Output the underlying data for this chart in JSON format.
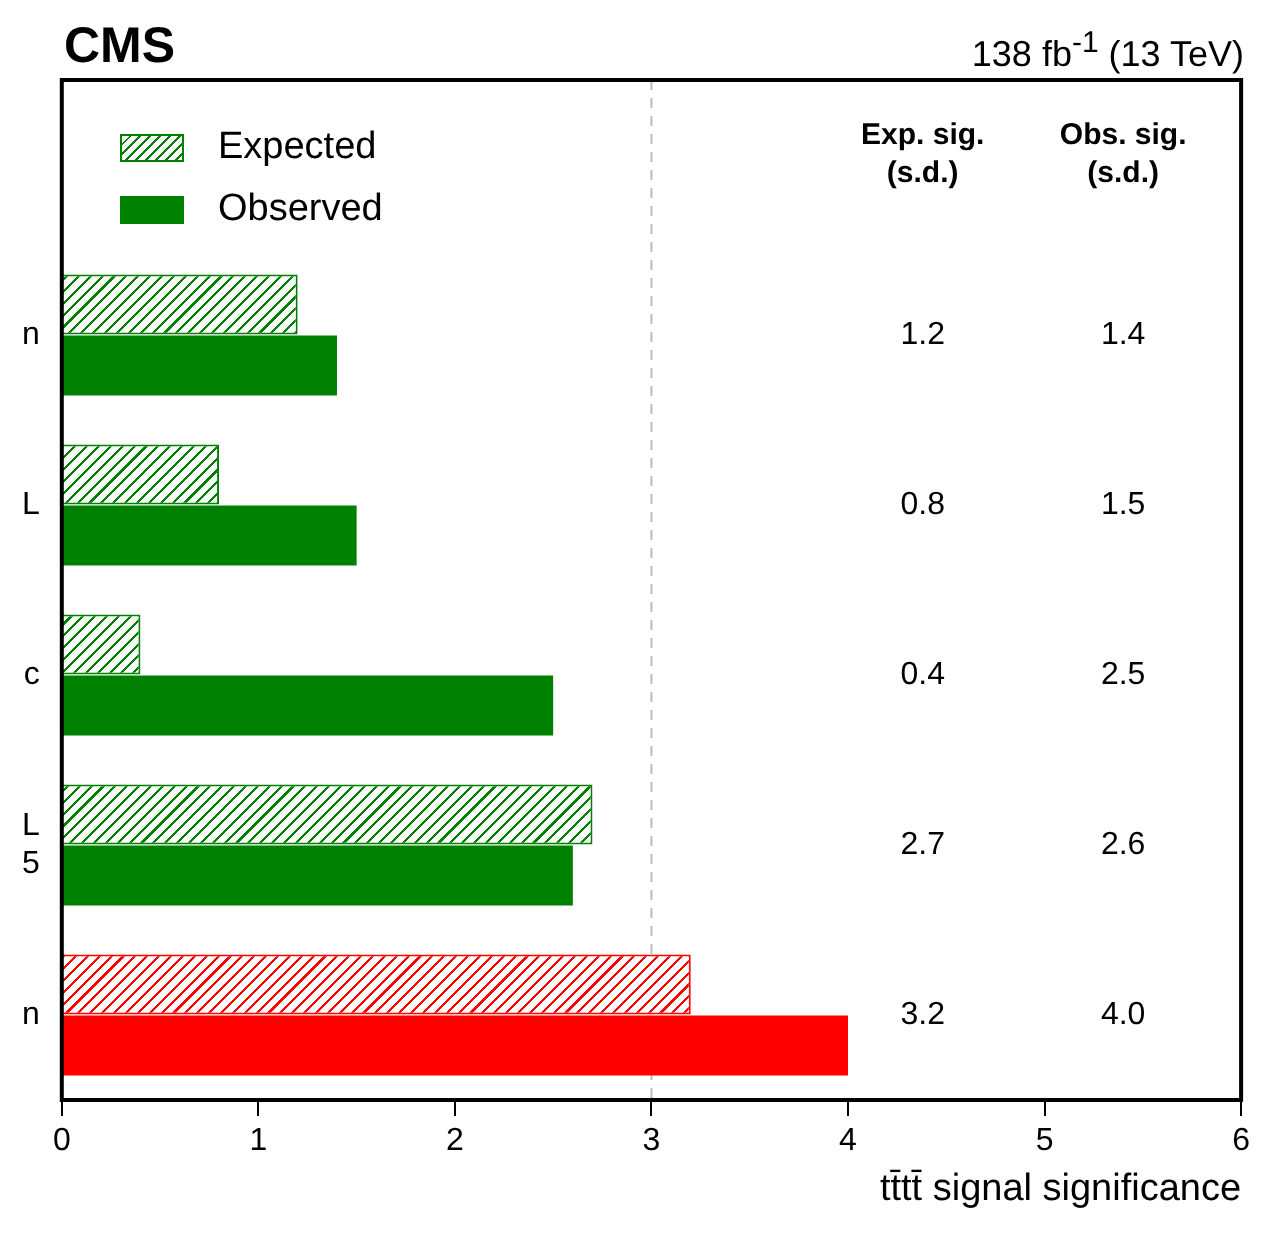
{
  "chart_data": {
    "type": "bar",
    "orientation": "horizontal",
    "title": "CMS",
    "subtitle": "138 fb$^{-1}$ (13 TeV)",
    "xlabel": "tt̄tt̄ signal significance",
    "categories": [
      "n",
      "L",
      "c",
      "L\n5",
      "n"
    ],
    "series": [
      {
        "name": "Expected",
        "colors": [
          "#008000",
          "#008000",
          "#008000",
          "#008000",
          "#ff0000"
        ],
        "values": [
          1.2,
          0.8,
          0.4,
          2.7,
          3.2
        ],
        "value_labels": [
          "1.2",
          "0.8",
          "0.4",
          "2.7",
          "3.2"
        ]
      },
      {
        "name": "Observed",
        "colors": [
          "#008000",
          "#008000",
          "#008000",
          "#008000",
          "#ff0000"
        ],
        "values": [
          1.4,
          1.5,
          2.5,
          2.6,
          4.0
        ],
        "value_labels": [
          "1.4",
          "1.5",
          "2.5",
          "2.6",
          "4.0"
        ]
      }
    ],
    "annotations": [
      "Exp. sig.\n(s.d.)",
      "Obs. sig.\n(s.d.)"
    ],
    "xlim": [
      0,
      6
    ],
    "xticks": [
      0,
      1,
      2,
      3,
      4,
      5,
      6
    ],
    "ref_lines": [
      {
        "axis": "x",
        "value": 3,
        "color": "#bbbbbb",
        "line_style": "dashed"
      }
    ],
    "legend": "top left",
    "grid": false
  }
}
